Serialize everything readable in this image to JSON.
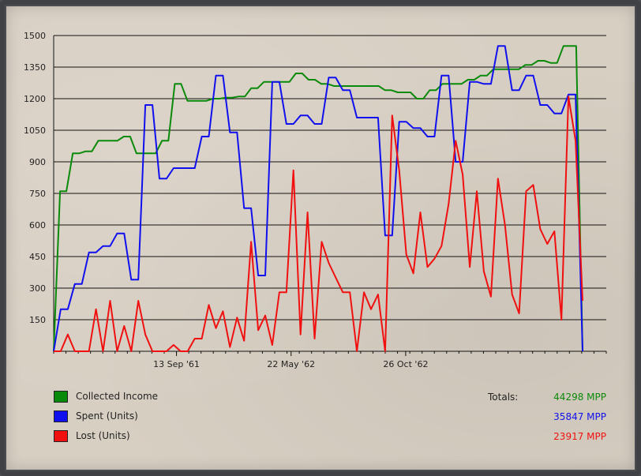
{
  "chart_data": {
    "type": "line",
    "title": "",
    "xlabel": "",
    "ylabel": "",
    "ylim": [
      0,
      1500
    ],
    "yticks": [
      150,
      300,
      450,
      600,
      750,
      900,
      1050,
      1200,
      1350,
      1500
    ],
    "xtick_labels": [
      {
        "label": "13 Sep '61",
        "at": 30
      },
      {
        "label": "22 May '62",
        "at": 58
      },
      {
        "label": "26 Oct '62",
        "at": 86
      }
    ],
    "x_count": 136,
    "grid": true,
    "legend_position": "bottom-left",
    "series": [
      {
        "name": "Collected Income",
        "color": "#0a8a0a",
        "values": [
          0,
          760,
          760,
          940,
          940,
          950,
          950,
          1000,
          1000,
          1000,
          1000,
          1020,
          1020,
          940,
          940,
          940,
          940,
          1000,
          1000,
          1270,
          1270,
          1190,
          1190,
          1190,
          1190,
          1200,
          1200,
          1205,
          1205,
          1210,
          1210,
          1250,
          1250,
          1280,
          1280,
          1280,
          1280,
          1280,
          1320,
          1320,
          1290,
          1290,
          1270,
          1270,
          1260,
          1260,
          1260,
          1260,
          1260,
          1260,
          1260,
          1260,
          1240,
          1240,
          1230,
          1230,
          1230,
          1200,
          1200,
          1240,
          1240,
          1270,
          1270,
          1270,
          1270,
          1290,
          1290,
          1310,
          1310,
          1340,
          1340,
          1340,
          1340,
          1340,
          1360,
          1360,
          1380,
          1380,
          1370,
          1370,
          1450,
          1450,
          1450,
          0
        ]
      },
      {
        "name": "Spent (Units)",
        "color": "#1010ee",
        "values": [
          0,
          200,
          200,
          320,
          320,
          470,
          470,
          500,
          500,
          560,
          560,
          340,
          340,
          1170,
          1170,
          820,
          820,
          870,
          870,
          870,
          870,
          1020,
          1020,
          1310,
          1310,
          1040,
          1040,
          680,
          680,
          360,
          360,
          1280,
          1280,
          1080,
          1080,
          1120,
          1120,
          1080,
          1080,
          1300,
          1300,
          1240,
          1240,
          1110,
          1110,
          1110,
          1110,
          550,
          550,
          1090,
          1090,
          1060,
          1060,
          1020,
          1020,
          1310,
          1310,
          900,
          900,
          1280,
          1280,
          1270,
          1270,
          1450,
          1450,
          1240,
          1240,
          1310,
          1310,
          1170,
          1170,
          1130,
          1130,
          1220,
          1220,
          0
        ]
      },
      {
        "name": "Lost (Units)",
        "color": "#f01010",
        "values": [
          0,
          0,
          80,
          0,
          0,
          0,
          200,
          0,
          240,
          0,
          120,
          0,
          240,
          80,
          0,
          0,
          0,
          30,
          0,
          0,
          60,
          60,
          220,
          110,
          190,
          20,
          160,
          50,
          520,
          100,
          170,
          30,
          280,
          280,
          860,
          80,
          660,
          60,
          520,
          420,
          350,
          280,
          280,
          0,
          280,
          200,
          270,
          0,
          1120,
          860,
          460,
          370,
          660,
          400,
          440,
          500,
          700,
          1000,
          840,
          400,
          760,
          380,
          260,
          820,
          600,
          270,
          180,
          760,
          790,
          580,
          510,
          570,
          150,
          1210,
          1000,
          240
        ]
      }
    ],
    "totals": {
      "label": "Totals:",
      "values": [
        "44298 MPP",
        "35847 MPP",
        "23917 MPP"
      ]
    }
  }
}
